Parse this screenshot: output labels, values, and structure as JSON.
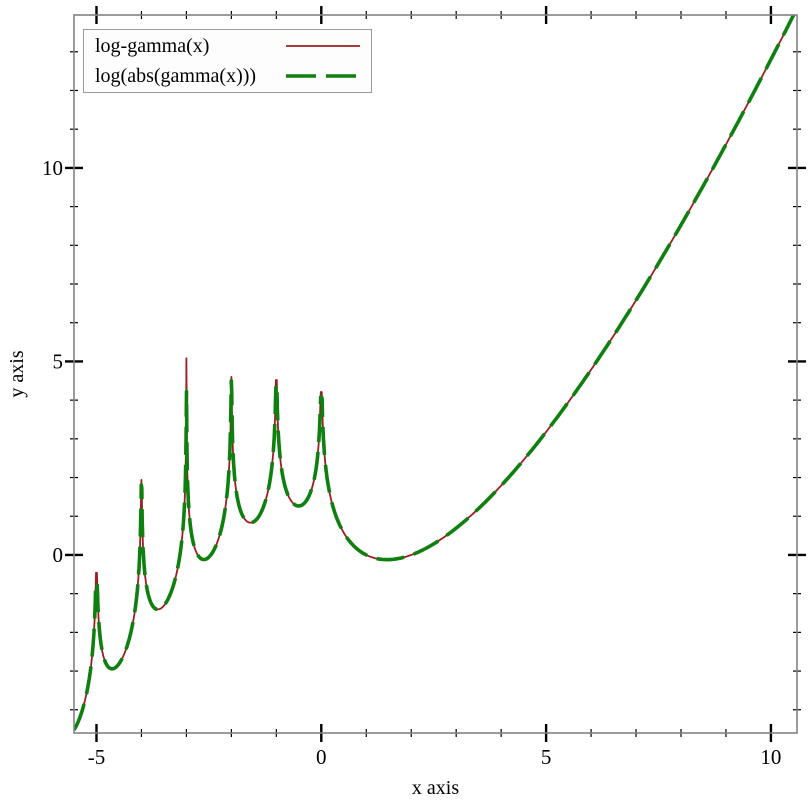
{
  "chart_data": {
    "type": "line",
    "title": "",
    "xlabel": "x axis",
    "ylabel": "y axis",
    "xlim": [
      -5.5,
      10.58
    ],
    "ylim": [
      -4.6,
      13.95
    ],
    "grid": false,
    "legend_position": "top-left",
    "x_major_ticks": [
      -5,
      0,
      5,
      10
    ],
    "x_major_tick_labels": [
      "-5",
      "0",
      "5",
      "10"
    ],
    "x_minor_ticks": [
      -4,
      -3,
      -2,
      -1,
      1,
      2,
      3,
      4,
      6,
      7,
      8,
      9
    ],
    "y_major_ticks": [
      0,
      5,
      10
    ],
    "y_major_tick_labels": [
      "0",
      "5",
      "10"
    ],
    "y_minor_ticks": [
      -4,
      -3,
      -2,
      -1,
      1,
      2,
      3,
      4,
      6,
      7,
      8,
      9,
      11,
      12,
      13
    ],
    "frame_color": "#828282",
    "tick_color": "#000000",
    "key_points": [
      [
        -5.5,
        -4.52
      ],
      [
        -4.5,
        -2.81
      ],
      [
        -3.5,
        -1.31
      ],
      [
        -2.5,
        -0.06
      ],
      [
        -1.5,
        0.86
      ],
      [
        -0.5,
        1.27
      ],
      [
        0.5,
        0.57
      ],
      [
        1,
        0
      ],
      [
        1.46,
        -0.12
      ],
      [
        2,
        0
      ],
      [
        2.5,
        0.28
      ],
      [
        3,
        0.69
      ],
      [
        3.5,
        1.2
      ],
      [
        4,
        1.79
      ],
      [
        4.5,
        2.45
      ],
      [
        5,
        3.18
      ],
      [
        5.5,
        3.96
      ],
      [
        6,
        4.79
      ],
      [
        6.5,
        5.66
      ],
      [
        7,
        6.58
      ],
      [
        7.5,
        7.53
      ],
      [
        8,
        8.53
      ],
      [
        8.5,
        9.55
      ],
      [
        9,
        10.6
      ],
      [
        9.5,
        11.69
      ],
      [
        10,
        12.8
      ],
      [
        10.5,
        13.94
      ]
    ],
    "series": [
      {
        "id": "curve-log-gamma",
        "name": "log-gamma(x)",
        "function": "log_abs_gamma",
        "domain": [
          -5.5,
          10.5
        ],
        "samples": 1600,
        "color": "#992020",
        "width": 1.8,
        "style": "solid",
        "dash": "",
        "legend_dash": "",
        "pole_peaks": [
          {
            "x": -5,
            "peak": -0.46
          },
          {
            "x": -4,
            "peak": 1.94
          },
          {
            "x": -3,
            "peak": 5.08
          },
          {
            "x": -2,
            "peak": 4.6
          },
          {
            "x": -1,
            "peak": 4.52
          },
          {
            "x": 0,
            "peak": 4.21
          }
        ]
      },
      {
        "id": "curve-log-abs-gamma",
        "name": "log(abs(gamma(x)))",
        "function": "log_abs_gamma",
        "domain": [
          -5.5,
          10.58
        ],
        "samples": 1600,
        "color": "#0f7f0f",
        "width": 3.6,
        "style": "long-dash",
        "dash": "28 10",
        "legend_dash": "30 10",
        "pole_peaks": [
          {
            "x": -5,
            "peak": -0.72
          },
          {
            "x": -4,
            "peak": 1.81
          },
          {
            "x": -3,
            "peak": 4.95
          },
          {
            "x": -2,
            "peak": 4.5
          },
          {
            "x": -1,
            "peak": 4.4
          },
          {
            "x": 0,
            "peak": 4.08
          }
        ]
      }
    ]
  }
}
